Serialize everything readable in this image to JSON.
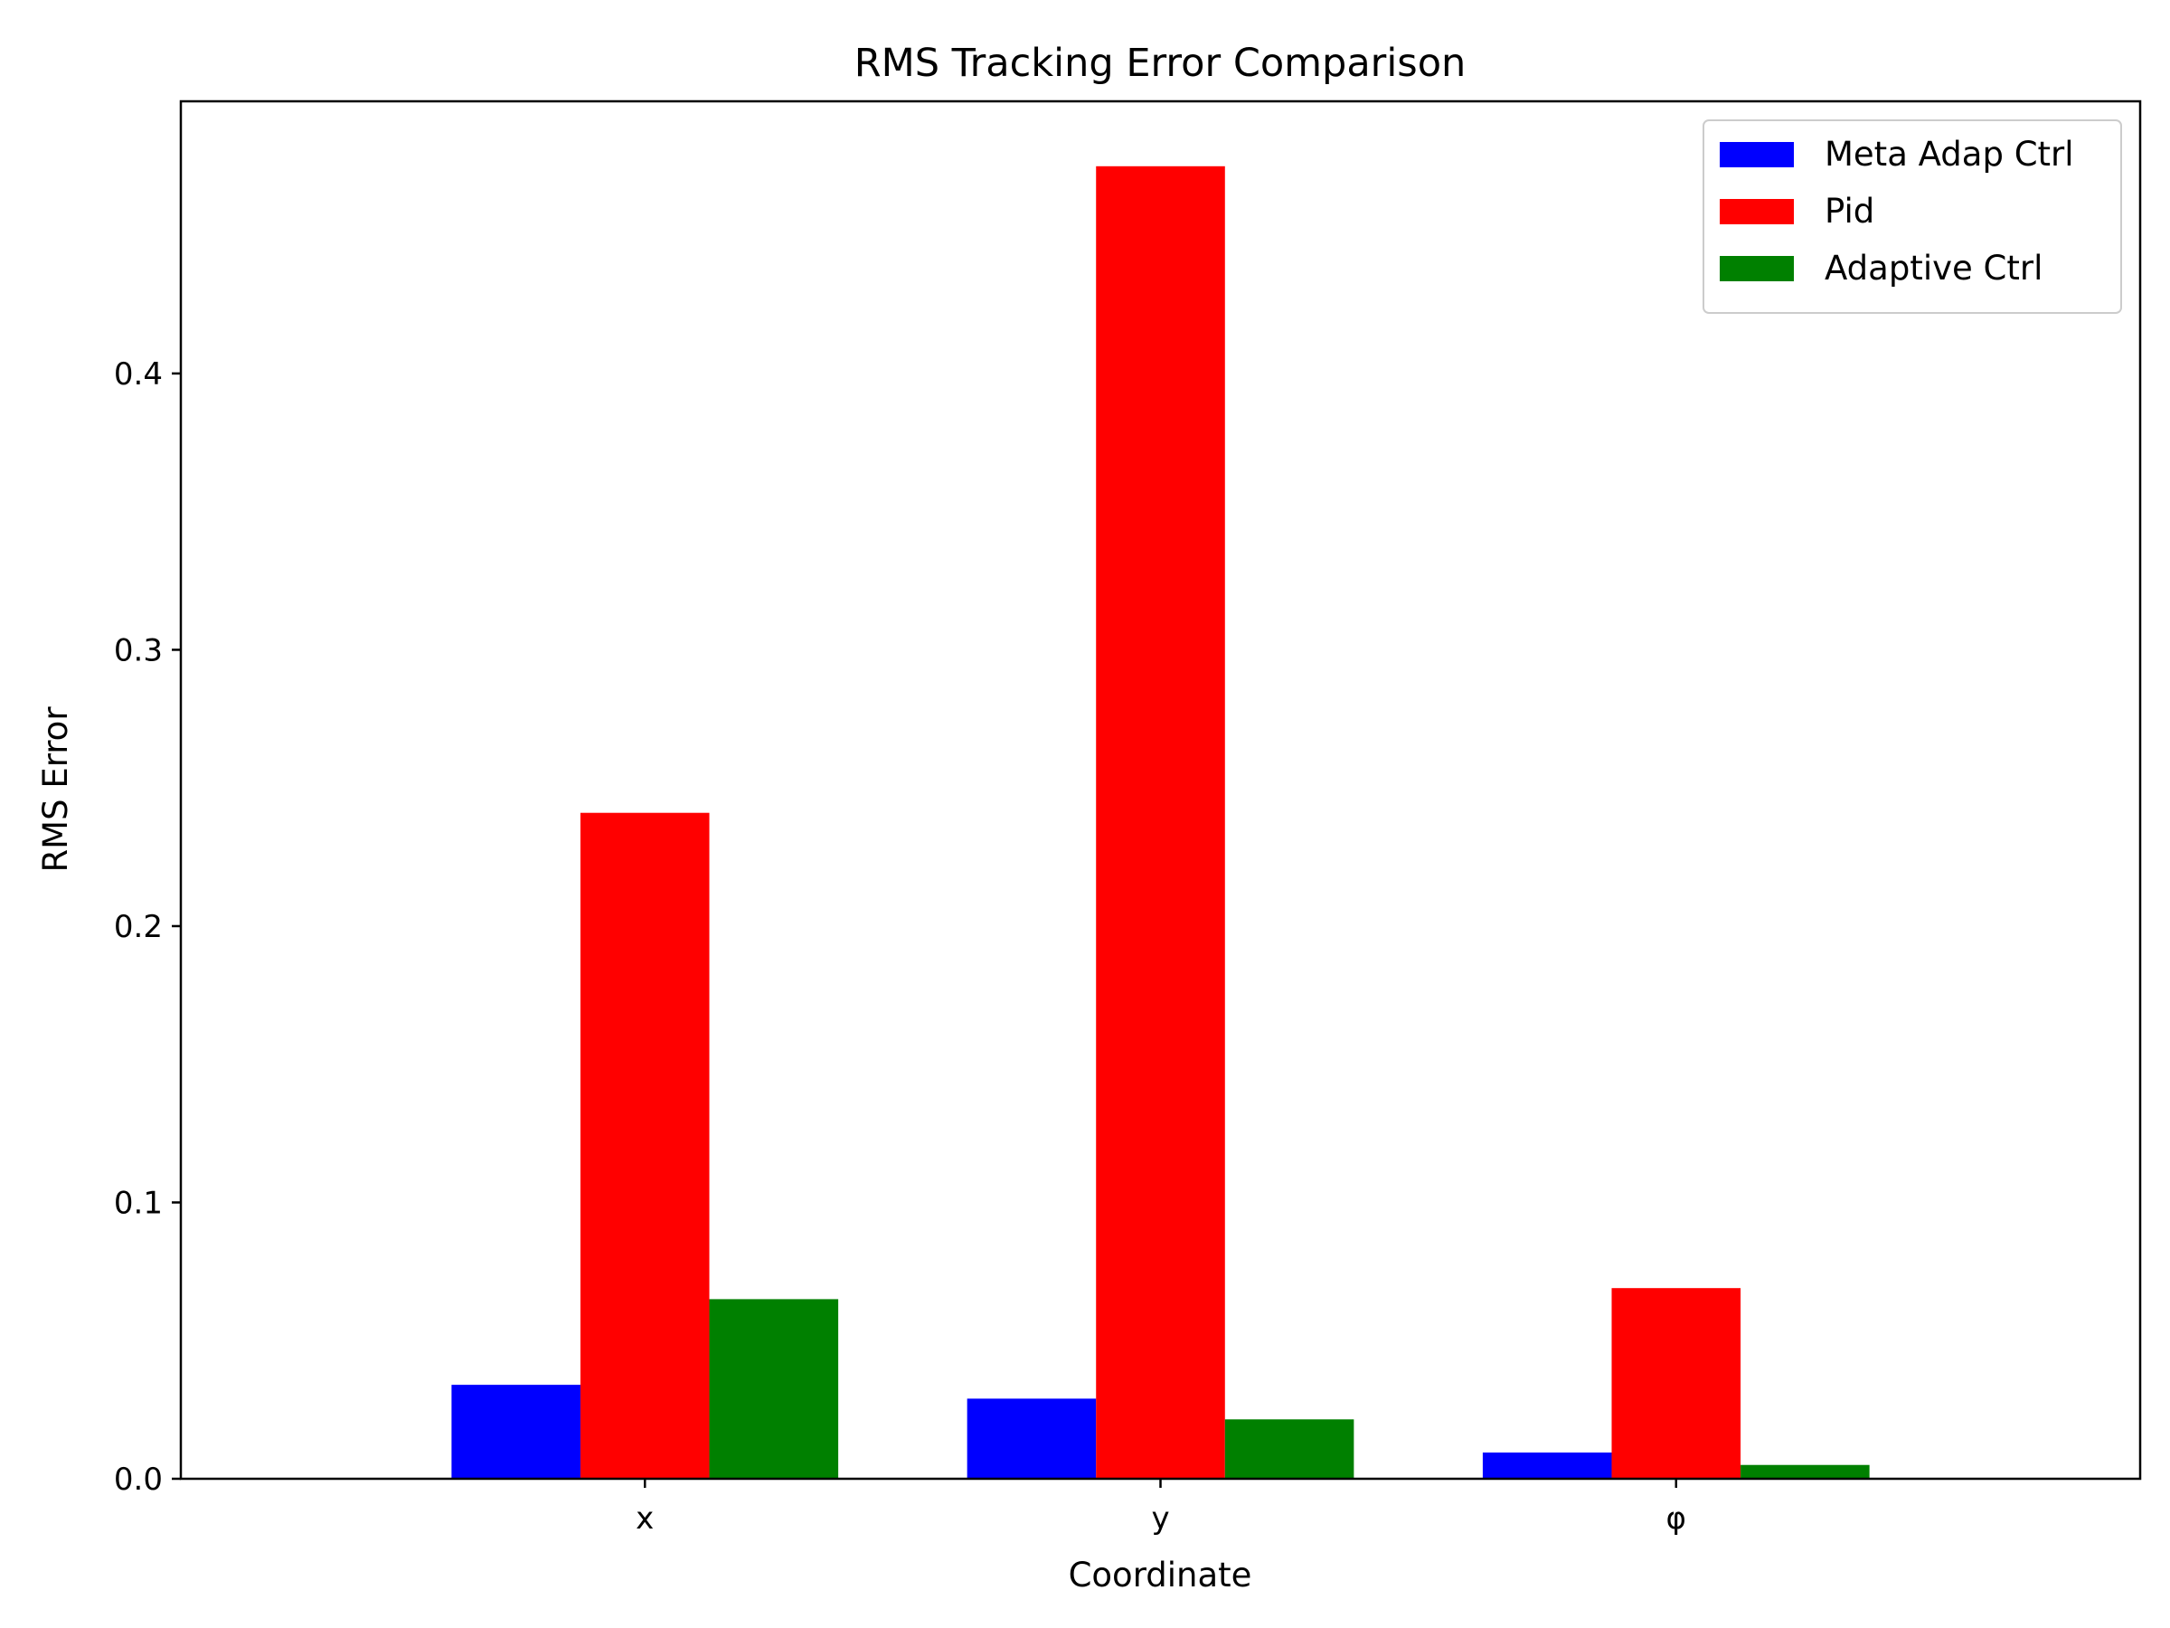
{
  "chart_data": {
    "type": "bar",
    "title": "RMS Tracking Error Comparison",
    "xlabel": "Coordinate",
    "ylabel": "RMS Error",
    "categories": [
      "x",
      "y",
      "φ"
    ],
    "series": [
      {
        "name": "Meta Adap Ctrl",
        "color": "#0000ff",
        "values": [
          0.034,
          0.029,
          0.0095
        ]
      },
      {
        "name": "Pid",
        "color": "#ff0000",
        "values": [
          0.241,
          0.475,
          0.069
        ]
      },
      {
        "name": "Adaptive Ctrl",
        "color": "#008000",
        "values": [
          0.065,
          0.0215,
          0.005
        ]
      }
    ],
    "ylim": [
      0,
      0.4985
    ],
    "yticks": [
      0.0,
      0.1,
      0.2,
      0.3,
      0.4
    ],
    "ytick_labels": [
      "0.0",
      "0.1",
      "0.2",
      "0.3",
      "0.4"
    ],
    "grid": false,
    "legend_position": "top-right"
  }
}
